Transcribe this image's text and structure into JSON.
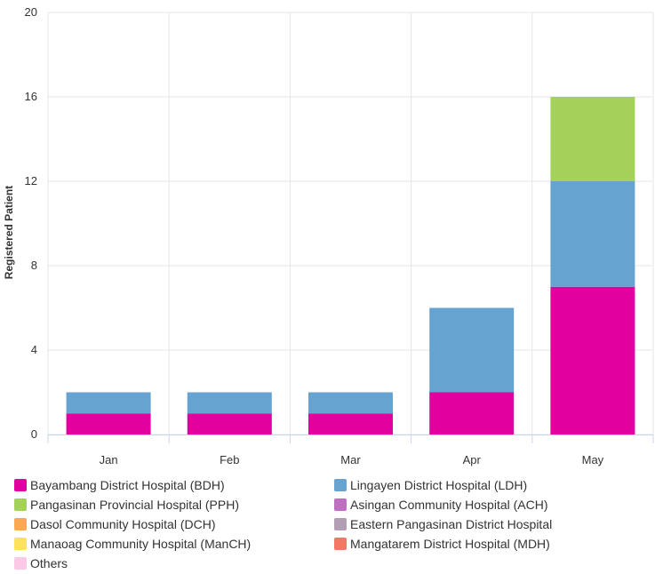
{
  "chart_data": {
    "type": "bar",
    "stacked": true,
    "categories": [
      "Jan",
      "Feb",
      "Mar",
      "Apr",
      "May"
    ],
    "ylabel": "Registered Patient",
    "ylim": [
      0,
      20
    ],
    "yticks": [
      0,
      4,
      8,
      12,
      16,
      20
    ],
    "grid": true,
    "legend_position": "bottom",
    "series": [
      {
        "name": "Bayambang District Hospital (BDH)",
        "color": "#e2009e",
        "values": [
          1,
          1,
          1,
          2,
          7
        ]
      },
      {
        "name": "Lingayen District Hospital (LDH)",
        "color": "#67a3d0",
        "values": [
          1,
          1,
          1,
          4,
          5
        ]
      },
      {
        "name": "Pangasinan Provincial Hospital (PPH)",
        "color": "#a3d159",
        "values": [
          0,
          0,
          0,
          0,
          4
        ]
      },
      {
        "name": "Asingan Community Hospital (ACH)",
        "color": "#bf6fbf",
        "values": [
          0,
          0,
          0,
          0,
          0
        ]
      },
      {
        "name": "Dasol Community Hospital (DCH)",
        "color": "#fba852",
        "values": [
          0,
          0,
          0,
          0,
          0
        ]
      },
      {
        "name": "Eastern Pangasinan District Hospital",
        "color": "#b29fb4",
        "values": [
          0,
          0,
          0,
          0,
          0
        ]
      },
      {
        "name": "Manaoag Community Hospital (ManCH)",
        "color": "#fde35b",
        "values": [
          0,
          0,
          0,
          0,
          0
        ]
      },
      {
        "name": "Mangatarem District Hospital (MDH)",
        "color": "#f47766",
        "values": [
          0,
          0,
          0,
          0,
          0
        ]
      },
      {
        "name": "Others",
        "color": "#fbc8e6",
        "values": [
          0,
          0,
          0,
          0,
          0
        ]
      }
    ]
  }
}
